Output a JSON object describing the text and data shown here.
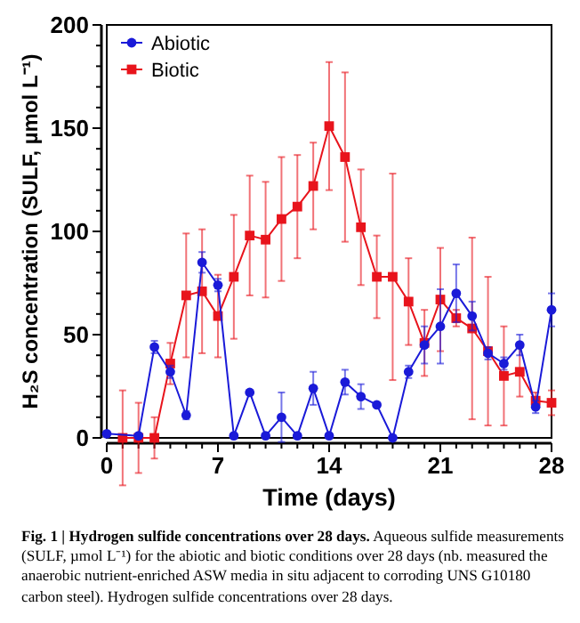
{
  "chart_data": {
    "type": "line",
    "xlabel": "Time (days)",
    "ylabel": "H₂S concentration (SULF, µmol L⁻¹)",
    "title": "Fig. 1 | Hydrogen sulfide concentrations over 28 days.",
    "annotations": [
      "Aqueous sulfide measurements (SULF, µmol L⁻¹) for the abiotic and biotic conditions over 28 days (nb. measured the anaerobic nutrient-enriched ASW media in situ adjacent to corroding UNS G10180 carbon steel). Hydrogen sulfide concentrations over 28 days."
    ],
    "xlim": [
      0,
      28
    ],
    "ylim": [
      0,
      200
    ],
    "xticks": [
      0,
      {
        "value": 1,
        "label": null
      },
      {
        "value": 2,
        "label": null
      },
      {
        "value": 3,
        "label": null
      },
      {
        "value": 4,
        "label": null
      },
      {
        "value": 5,
        "label": null
      },
      {
        "value": 6,
        "label": null
      },
      7,
      {
        "value": 8,
        "label": null
      },
      {
        "value": 9,
        "label": null
      },
      {
        "value": 10,
        "label": null
      },
      {
        "value": 11,
        "label": null
      },
      {
        "value": 12,
        "label": null
      },
      {
        "value": 13,
        "label": null
      },
      14,
      {
        "value": 15,
        "label": null
      },
      {
        "value": 16,
        "label": null
      },
      {
        "value": 17,
        "label": null
      },
      {
        "value": 18,
        "label": null
      },
      {
        "value": 19,
        "label": null
      },
      {
        "value": 20,
        "label": null
      },
      21,
      {
        "value": 22,
        "label": null
      },
      {
        "value": 23,
        "label": null
      },
      {
        "value": 24,
        "label": null
      },
      {
        "value": 25,
        "label": null
      },
      {
        "value": 26,
        "label": null
      },
      {
        "value": 27,
        "label": null
      },
      28
    ],
    "yticks": [
      0,
      {
        "value": 10,
        "label": null
      },
      {
        "value": 20,
        "label": null
      },
      {
        "value": 30,
        "label": null
      },
      {
        "value": 40,
        "label": null
      },
      50,
      {
        "value": 60,
        "label": null
      },
      {
        "value": 70,
        "label": null
      },
      {
        "value": 80,
        "label": null
      },
      {
        "value": 90,
        "label": null
      },
      100,
      {
        "value": 110,
        "label": null
      },
      {
        "value": 120,
        "label": null
      },
      {
        "value": 130,
        "label": null
      },
      {
        "value": 140,
        "label": null
      },
      150,
      {
        "value": 160,
        "label": null
      },
      {
        "value": 170,
        "label": null
      },
      {
        "value": 180,
        "label": null
      },
      {
        "value": 190,
        "label": null
      },
      200
    ],
    "grid": false,
    "legend": "top left",
    "line_style": "solid",
    "series": [
      {
        "name": "Abiotic",
        "color": "#1a1ad8",
        "marker": "circle",
        "x": [
          0,
          2,
          3,
          4,
          5,
          6,
          7,
          8,
          9,
          10,
          11,
          12,
          13,
          14,
          15,
          16,
          17,
          18,
          19,
          20,
          21,
          22,
          23,
          24,
          25,
          26,
          27,
          28
        ],
        "values": [
          2,
          1,
          44,
          32,
          11,
          85,
          74,
          1,
          22,
          1,
          10,
          1,
          24,
          1,
          27,
          20,
          16,
          0,
          32,
          45,
          54,
          70,
          59,
          41,
          36,
          45,
          15,
          62
        ],
        "errors": [
          null,
          null,
          3,
          3,
          2,
          5,
          3,
          null,
          null,
          null,
          12,
          null,
          8,
          null,
          6,
          6,
          null,
          null,
          3,
          9,
          18,
          14,
          7,
          3,
          3,
          5,
          3,
          8
        ]
      },
      {
        "name": "Biotic",
        "color": "#e8141c",
        "marker": "square",
        "x": [
          1,
          2,
          3,
          4,
          5,
          6,
          7,
          8,
          9,
          10,
          11,
          12,
          13,
          14,
          15,
          16,
          17,
          18,
          19,
          20,
          21,
          22,
          23,
          24,
          25,
          26,
          27,
          28
        ],
        "values": [
          0,
          0,
          0,
          36,
          69,
          71,
          59,
          78,
          98,
          96,
          106,
          112,
          122,
          151,
          136,
          102,
          78,
          78,
          66,
          46,
          67,
          58,
          53,
          42,
          30,
          32,
          18,
          17
        ],
        "errors": [
          23,
          17,
          10,
          10,
          30,
          30,
          20,
          30,
          29,
          28,
          30,
          25,
          21,
          31,
          41,
          28,
          20,
          50,
          21,
          16,
          25,
          4,
          44,
          36,
          24,
          12,
          4,
          6
        ]
      }
    ]
  }
}
